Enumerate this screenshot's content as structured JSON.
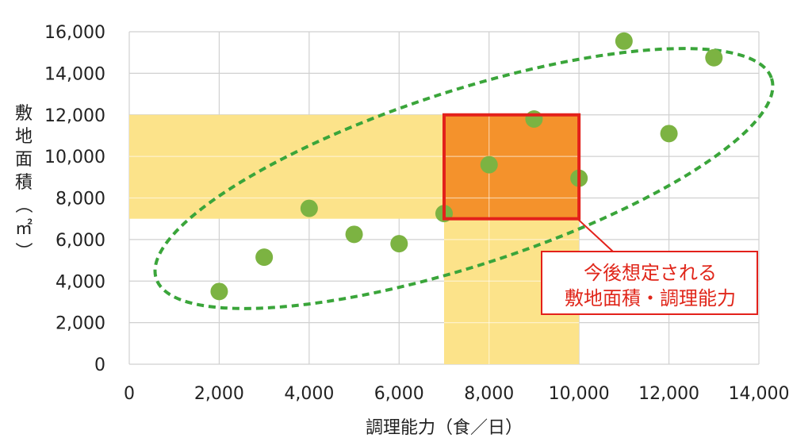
{
  "chart_data": {
    "type": "scatter",
    "xlabel": "調理能力（食／日）",
    "ylabel": "敷地面積（㎡）",
    "xlim": [
      0,
      14000
    ],
    "ylim": [
      0,
      16000
    ],
    "x_ticks": [
      "0",
      "2,000",
      "4,000",
      "6,000",
      "8,000",
      "10,000",
      "12,000",
      "14,000"
    ],
    "y_ticks": [
      "0",
      "2,000",
      "4,000",
      "6,000",
      "8,000",
      "10,000",
      "12,000",
      "14,000",
      "16,000"
    ],
    "grid": true,
    "points": [
      {
        "x": 2000,
        "y": 3500
      },
      {
        "x": 3000,
        "y": 5150
      },
      {
        "x": 4000,
        "y": 7500
      },
      {
        "x": 5000,
        "y": 6250
      },
      {
        "x": 6000,
        "y": 5800
      },
      {
        "x": 7000,
        "y": 7250
      },
      {
        "x": 8000,
        "y": 9600
      },
      {
        "x": 9000,
        "y": 11800
      },
      {
        "x": 10000,
        "y": 8950
      },
      {
        "x": 11000,
        "y": 15550
      },
      {
        "x": 12000,
        "y": 11100
      },
      {
        "x": 13000,
        "y": 14750
      }
    ],
    "highlight_range": {
      "x": [
        7000,
        10000
      ],
      "y": [
        7000,
        12000
      ]
    },
    "callout": {
      "lines": [
        "今後想定される",
        "敷地面積・調理能力"
      ]
    },
    "colors": {
      "points": "#7cb342",
      "band": "#fce38a",
      "highlight_fill": "#f4922c",
      "highlight_border": "#e3211b",
      "ellipse": "#3aa53a",
      "callout_text": "#e0261a",
      "grid": "#d0d0d0"
    }
  }
}
